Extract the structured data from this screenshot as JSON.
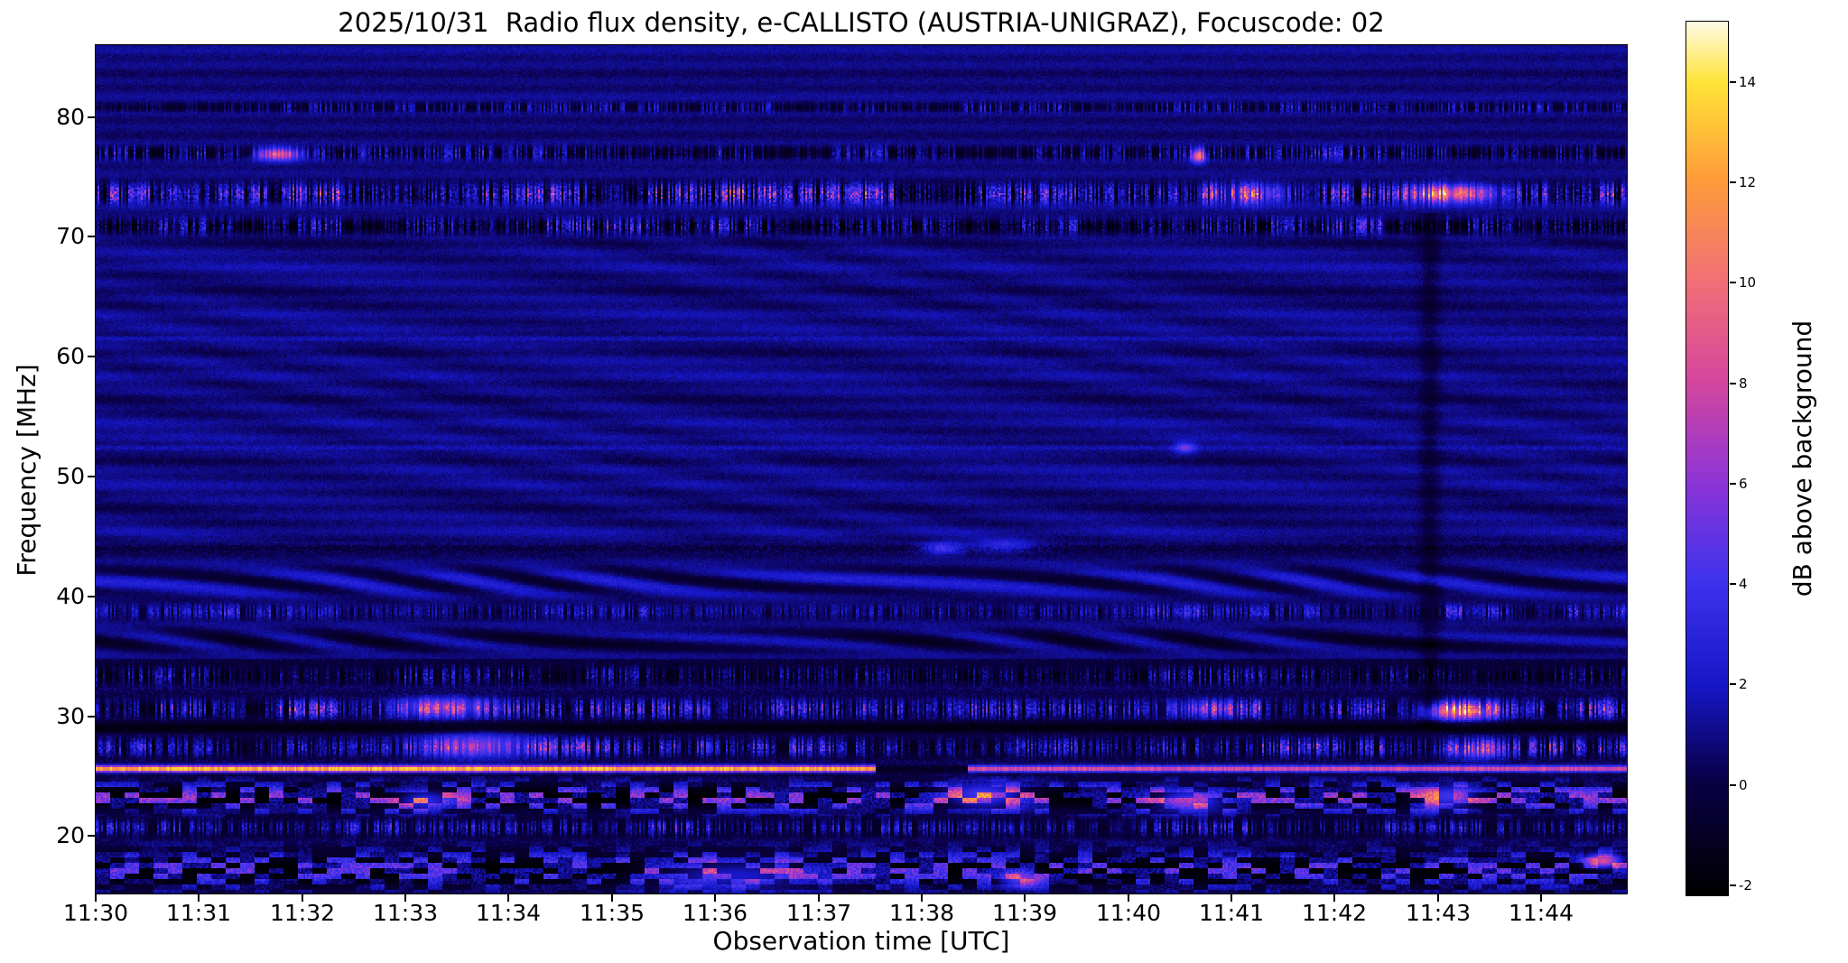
{
  "chart_data": {
    "type": "heatmap",
    "title": "2025/10/31  Radio flux density, e-CALLISTO (AUSTRIA-UNIGRAZ), Focuscode: 02",
    "xlabel": "Observation time [UTC]",
    "ylabel": "Frequency [MHz]",
    "x_tick_labels": [
      "11:30",
      "11:31",
      "11:32",
      "11:33",
      "11:34",
      "11:35",
      "11:36",
      "11:37",
      "11:38",
      "11:39",
      "11:40",
      "11:41",
      "11:42",
      "11:43",
      "11:44"
    ],
    "x_tick_minutes": [
      0,
      1,
      2,
      3,
      4,
      5,
      6,
      7,
      8,
      9,
      10,
      11,
      12,
      13,
      14
    ],
    "x_range_minutes": [
      0,
      14.83
    ],
    "y_tick_labels": [
      "80",
      "70",
      "60",
      "50",
      "40",
      "30",
      "20"
    ],
    "y_tick_values": [
      80,
      70,
      60,
      50,
      40,
      30,
      20
    ],
    "y_range_mhz": [
      15.2,
      86.0
    ],
    "grid": false,
    "colorbar": {
      "label": "dB above background",
      "tick_labels": [
        "14",
        "12",
        "10",
        "8",
        "6",
        "4",
        "2",
        "0",
        "-2"
      ],
      "tick_values": [
        14,
        12,
        10,
        8,
        6,
        4,
        2,
        0,
        -2
      ],
      "vmin": -2.2,
      "vmax": 15.2,
      "colormap_stops": [
        [
          0.0,
          "#000000"
        ],
        [
          0.13,
          "#0a0046"
        ],
        [
          0.24,
          "#1617c8"
        ],
        [
          0.36,
          "#3f33ee"
        ],
        [
          0.47,
          "#8c35d8"
        ],
        [
          0.59,
          "#d6479e"
        ],
        [
          0.7,
          "#f06f77"
        ],
        [
          0.82,
          "#ff9d3a"
        ],
        [
          0.93,
          "#ffe438"
        ],
        [
          1.0,
          "#fffbe6"
        ]
      ]
    },
    "background_db": 0.85,
    "bands": [
      {
        "f": 80.8,
        "w": 0.5,
        "type": "speckle",
        "base": -0.8,
        "amp": 2.5,
        "density": 0.55
      },
      {
        "f": 77.0,
        "w": 0.7,
        "type": "speckle",
        "base": -1.2,
        "amp": 3.0,
        "density": 0.6
      },
      {
        "f": 73.6,
        "w": 1.0,
        "type": "speckle",
        "base": -2.0,
        "amp": 6.5,
        "density": 0.8
      },
      {
        "f": 70.9,
        "w": 0.8,
        "type": "speckle",
        "base": -1.8,
        "amp": 4.5,
        "density": 0.7
      },
      {
        "f": 61.5,
        "w": 0.35,
        "type": "faint",
        "base": 1.2,
        "amp": 1.2
      },
      {
        "f": 52.4,
        "w": 0.35,
        "type": "faint",
        "base": 1.2,
        "amp": 1.2
      },
      {
        "f": 44.0,
        "w": 0.5,
        "type": "dark",
        "base": -0.6,
        "amp": 1.5
      },
      {
        "f": 41.2,
        "w": 1.6,
        "type": "wavy",
        "base": 0.9,
        "amp": 1.8
      },
      {
        "f": 38.7,
        "w": 0.7,
        "type": "speckle",
        "base": -0.5,
        "amp": 3.2,
        "density": 0.75
      },
      {
        "f": 36.3,
        "w": 1.2,
        "type": "wavy",
        "base": 0.2,
        "amp": 1.6
      },
      {
        "f": 33.4,
        "w": 0.9,
        "type": "speckle",
        "base": -1.4,
        "amp": 3.0,
        "density": 0.6
      },
      {
        "f": 30.6,
        "w": 0.9,
        "type": "speckle",
        "base": -1.2,
        "amp": 5.5,
        "density": 0.72
      },
      {
        "f": 29.0,
        "w": 0.6,
        "type": "dark",
        "base": -1.9,
        "amp": 0.8
      },
      {
        "f": 27.4,
        "w": 0.9,
        "type": "speckle",
        "base": -1.2,
        "amp": 5.0,
        "density": 0.7
      },
      {
        "f": 25.6,
        "w": 0.35,
        "type": "line",
        "base": 8.5,
        "amp": 5.0,
        "env": [
          [
            0,
            7.55,
            1.12
          ],
          [
            7.55,
            8.45,
            0
          ],
          [
            8.45,
            14.9,
            0.72
          ]
        ]
      },
      {
        "f": 23.2,
        "w": 1.5,
        "type": "blocky",
        "base": 3.5,
        "amp": 5.0
      },
      {
        "f": 20.7,
        "w": 0.8,
        "type": "speckle",
        "base": -0.8,
        "amp": 3.6,
        "density": 0.65
      },
      {
        "f": 17.2,
        "w": 2.0,
        "type": "blocky",
        "base": 2.5,
        "amp": 4.5
      }
    ],
    "events": [
      {
        "t": 1.78,
        "f": 76.9,
        "v": 9,
        "dt": 0.22,
        "df": 0.5
      },
      {
        "t": 10.68,
        "f": 76.8,
        "v": 11,
        "dt": 0.07,
        "df": 0.55
      },
      {
        "t": 13.15,
        "f": 73.6,
        "v": 9,
        "dt": 0.45,
        "df": 0.7
      },
      {
        "t": 11.2,
        "f": 73.6,
        "v": 4.5,
        "dt": 0.5,
        "df": 0.8
      },
      {
        "t": 10.55,
        "f": 52.4,
        "v": 4,
        "dt": 0.1,
        "df": 0.5
      },
      {
        "t": 8.2,
        "f": 44.0,
        "v": 4,
        "dt": 0.2,
        "df": 0.5
      },
      {
        "t": 8.8,
        "f": 44.2,
        "v": 3,
        "dt": 0.3,
        "df": 0.5
      },
      {
        "t": 3.35,
        "f": 30.7,
        "v": 6,
        "dt": 0.5,
        "df": 0.8
      },
      {
        "t": 13.2,
        "f": 30.4,
        "v": 9,
        "dt": 0.35,
        "df": 0.7
      },
      {
        "t": 10.75,
        "f": 30.6,
        "v": 4,
        "dt": 0.4,
        "df": 0.7
      },
      {
        "t": 3.7,
        "f": 27.5,
        "v": 6,
        "dt": 0.6,
        "df": 1.0
      },
      {
        "t": 13.4,
        "f": 27.2,
        "v": 5,
        "dt": 0.3,
        "df": 0.8
      },
      {
        "t": 8.6,
        "f": 23.4,
        "v": 6,
        "dt": 0.4,
        "df": 1.0
      },
      {
        "t": 10.6,
        "f": 23.0,
        "v": 6,
        "dt": 0.35,
        "df": 0.9
      },
      {
        "t": 13.1,
        "f": 23.3,
        "v": 6,
        "dt": 0.3,
        "df": 0.9
      },
      {
        "t": 3.2,
        "f": 23.0,
        "v": 5,
        "dt": 0.3,
        "df": 0.8
      },
      {
        "t": 14.6,
        "f": 17.9,
        "v": 10,
        "dt": 0.18,
        "df": 0.6
      },
      {
        "t": 8.95,
        "f": 16.4,
        "v": 6,
        "dt": 0.2,
        "df": 0.7
      },
      {
        "t": 6.2,
        "f": 16.8,
        "v": 4,
        "dt": 0.8,
        "df": 1.2
      }
    ],
    "vertical_streaks": [
      {
        "t": 12.92,
        "width": 0.1,
        "depth": 1.1,
        "f_min": 29,
        "f_max": 72
      }
    ]
  }
}
